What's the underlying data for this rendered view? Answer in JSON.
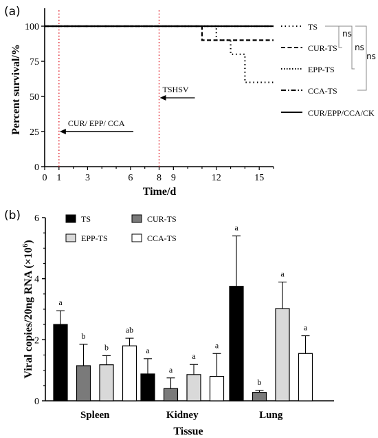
{
  "chart_data": [
    {
      "panel_label": "(a)",
      "type": "line",
      "step": true,
      "xlabel": "Time/d",
      "ylabel": "Percent survival/%",
      "xlim": [
        0,
        16
      ],
      "ylim": [
        0,
        100
      ],
      "xticks": [
        0,
        1,
        3,
        6,
        8,
        9,
        12,
        15
      ],
      "yticks": [
        0,
        25,
        50,
        75,
        100
      ],
      "vertical_lines": [
        1,
        8
      ],
      "annotations": [
        {
          "text": "CUR/ EPP/ CCA",
          "arrow_from_x": 6.2,
          "arrow_to_x": 1.05,
          "y": 25
        },
        {
          "text": "TSHSV",
          "arrow_from_x": 10.5,
          "arrow_to_x": 8.05,
          "y": 49
        }
      ],
      "series": [
        {
          "name": "TS",
          "style": "dotted",
          "x": [
            0,
            12,
            12,
            13,
            13,
            14,
            14,
            16
          ],
          "y": [
            100,
            100,
            90,
            90,
            80,
            80,
            60,
            60
          ]
        },
        {
          "name": "CUR-TS",
          "style": "dashed",
          "x": [
            0,
            11,
            11,
            16
          ],
          "y": [
            100,
            100,
            90,
            90
          ]
        },
        {
          "name": "EPP-TS",
          "style": "dotted-dense",
          "x": [
            0,
            16
          ],
          "y": [
            100,
            100
          ]
        },
        {
          "name": "CCA-TS",
          "style": "dashdot",
          "x": [
            0,
            16
          ],
          "y": [
            100,
            100
          ]
        },
        {
          "name": "CUR/EPP/CCA/CK",
          "style": "solid",
          "x": [
            0,
            16
          ],
          "y": [
            100,
            100
          ]
        }
      ],
      "significance": [
        "ns",
        "ns",
        "ns"
      ]
    },
    {
      "panel_label": "(b)",
      "type": "bar",
      "xlabel": "Tissue",
      "ylabel_main": "Viral copies/20ng RNA (×10",
      "ylabel_sup": "6",
      "ylabel_end": ")",
      "ylim": [
        0,
        6
      ],
      "yticks": [
        0,
        2,
        4,
        6
      ],
      "categories": [
        "Spleen",
        "Kidney",
        "Lung"
      ],
      "series": [
        {
          "name": "TS",
          "color": "#000000",
          "values": [
            2.5,
            0.88,
            3.75
          ],
          "errors": [
            0.45,
            0.5,
            1.65
          ],
          "letters": [
            "a",
            "a",
            "a"
          ]
        },
        {
          "name": "CUR-TS",
          "color": "#7a7a7a",
          "values": [
            1.15,
            0.4,
            0.28
          ],
          "errors": [
            0.7,
            0.35,
            0.06
          ],
          "letters": [
            "b",
            "a",
            "b"
          ]
        },
        {
          "name": "EPP-TS",
          "color": "#d9d9d9",
          "values": [
            1.18,
            0.86,
            3.02
          ],
          "errors": [
            0.3,
            0.33,
            0.87
          ],
          "letters": [
            "b",
            "a",
            "a"
          ]
        },
        {
          "name": "CCA-TS",
          "color": "#ffffff",
          "values": [
            1.8,
            0.8,
            1.55
          ],
          "errors": [
            0.25,
            0.75,
            0.58
          ],
          "letters": [
            "ab",
            "a",
            "a"
          ]
        }
      ]
    }
  ]
}
